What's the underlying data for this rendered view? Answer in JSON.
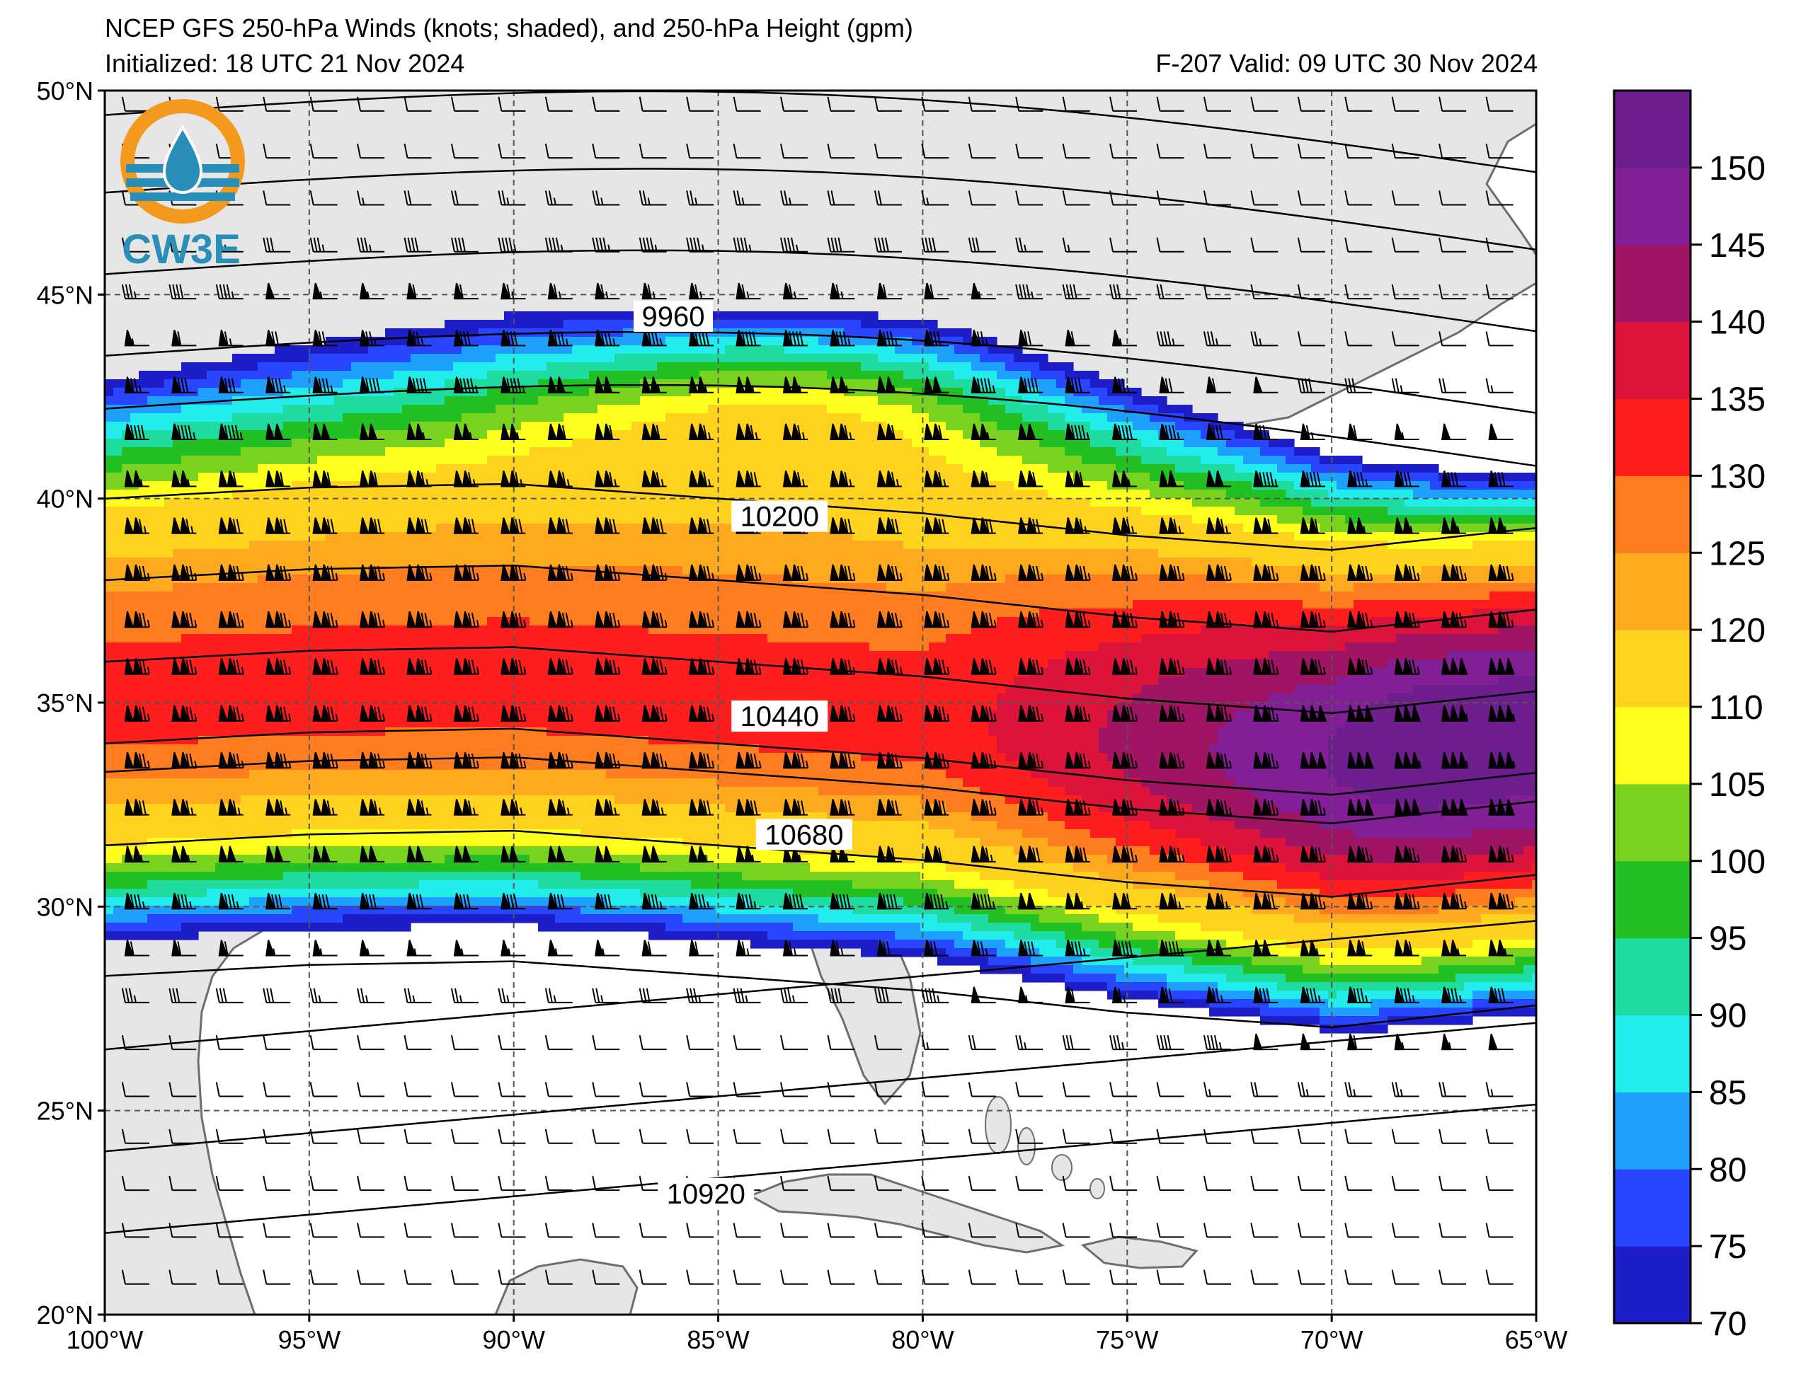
{
  "map": {
    "title": "NCEP GFS 250-hPa Winds (knots; shaded), and 250-hPa Height (gpm)",
    "initialized": "Initialized: 18 UTC 21 Nov 2024",
    "valid": "F-207  Valid: 09 UTC 30 Nov 2024",
    "logo_text": "CW3E",
    "extent": {
      "lon": [
        -100,
        -65
      ],
      "lat": [
        20,
        50
      ]
    },
    "lon_ticks": [
      {
        "value": -100,
        "label": "100°W"
      },
      {
        "value": -95,
        "label": "95°W"
      },
      {
        "value": -90,
        "label": "90°W"
      },
      {
        "value": -85,
        "label": "85°W"
      },
      {
        "value": -80,
        "label": "80°W"
      },
      {
        "value": -75,
        "label": "75°W"
      },
      {
        "value": -70,
        "label": "70°W"
      },
      {
        "value": -65,
        "label": "65°W"
      }
    ],
    "lat_ticks": [
      {
        "value": 20,
        "label": "20°N"
      },
      {
        "value": 25,
        "label": "25°N"
      },
      {
        "value": 30,
        "label": "30°N"
      },
      {
        "value": 35,
        "label": "35°N"
      },
      {
        "value": 40,
        "label": "40°N"
      },
      {
        "value": 45,
        "label": "45°N"
      },
      {
        "value": 50,
        "label": "50°N"
      }
    ],
    "contour_labels": [
      {
        "text": "9960",
        "lon": -86.1,
        "lat": 44.4
      },
      {
        "text": "10200",
        "lon": -83.5,
        "lat": 39.5
      },
      {
        "text": "10440",
        "lon": -83.5,
        "lat": 34.6
      },
      {
        "text": "10680",
        "lon": -82.9,
        "lat": 31.7
      },
      {
        "text": "10920",
        "lon": -85.3,
        "lat": 22.9
      }
    ],
    "jet_core_lat": [
      {
        "lon": -100,
        "lat": 35.0
      },
      {
        "lon": -95,
        "lat": 35.3
      },
      {
        "lon": -90,
        "lat": 35.4
      },
      {
        "lon": -85,
        "lat": 35.0
      },
      {
        "lon": -80,
        "lat": 34.6
      },
      {
        "lon": -75,
        "lat": 34.0
      },
      {
        "lon": -70,
        "lat": 33.6
      },
      {
        "lon": -65,
        "lat": 34.2
      }
    ],
    "colors": {
      "land": "#e6e6e6",
      "ocean": "#ffffff",
      "coast": "#6e6e6e"
    }
  },
  "colorbar": {
    "ticks": [
      "70",
      "75",
      "80",
      "85",
      "90",
      "95",
      "100",
      "105",
      "110",
      "120",
      "125",
      "130",
      "135",
      "140",
      "145",
      "150"
    ],
    "colors": [
      "#1e1ec8",
      "#2846ff",
      "#1ea0ff",
      "#22ecec",
      "#1edca0",
      "#22c022",
      "#78d21e",
      "#ffff1e",
      "#ffd21e",
      "#ffaa1e",
      "#ff7d1e",
      "#ff1e1e",
      "#dc143c",
      "#a01464",
      "#821e96",
      "#6e1e8c"
    ]
  }
}
